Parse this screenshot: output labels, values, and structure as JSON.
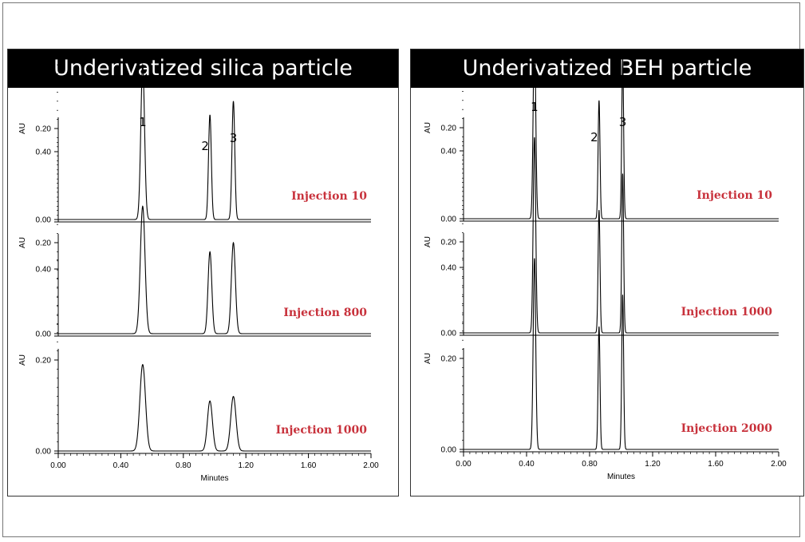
{
  "chart_data": [
    {
      "type": "line",
      "title": "Underivatized silica particle",
      "xlabel": "Minutes",
      "ylabel": "AU",
      "xlim": [
        0.0,
        2.0
      ],
      "ylim": [
        0.0,
        0.45
      ],
      "x_ticks": [
        "0.00",
        "0.40",
        "0.80",
        "1.20",
        "1.60",
        "2.00"
      ],
      "y_ticks": [
        "0.00",
        "0.20",
        "0.40"
      ],
      "peak_labels": [
        "1",
        "2",
        "3"
      ],
      "traces": [
        {
          "name": "Injection 10",
          "peaks": [
            {
              "x": 0.54,
              "height": 0.34,
              "width": 0.012
            },
            {
              "x": 0.97,
              "height": 0.23,
              "width": 0.009
            },
            {
              "x": 1.12,
              "height": 0.26,
              "width": 0.009
            }
          ]
        },
        {
          "name": "Injection 800",
          "peaks": [
            {
              "x": 0.54,
              "height": 0.28,
              "width": 0.015
            },
            {
              "x": 0.97,
              "height": 0.18,
              "width": 0.012
            },
            {
              "x": 1.12,
              "height": 0.2,
              "width": 0.013
            }
          ]
        },
        {
          "name": "Injection 1000",
          "peaks": [
            {
              "x": 0.54,
              "height": 0.19,
              "width": 0.018
            },
            {
              "x": 0.97,
              "height": 0.11,
              "width": 0.016
            },
            {
              "x": 1.12,
              "height": 0.12,
              "width": 0.017
            }
          ]
        }
      ]
    },
    {
      "type": "line",
      "title": "Underivatized BEH particle",
      "xlabel": "Minutes",
      "ylabel": "AU",
      "xlim": [
        0.0,
        2.0
      ],
      "ylim": [
        0.0,
        0.45
      ],
      "x_ticks": [
        "0.00",
        "0.40",
        "0.80",
        "1.20",
        "1.60",
        "2.00"
      ],
      "y_ticks": [
        "0.00",
        "0.20",
        "0.40"
      ],
      "peak_labels": [
        "1",
        "2",
        "3"
      ],
      "traces": [
        {
          "name": "Injection 10",
          "peaks": [
            {
              "x": 0.45,
              "height": 0.42,
              "width": 0.008
            },
            {
              "x": 0.86,
              "height": 0.26,
              "width": 0.006
            },
            {
              "x": 1.01,
              "height": 0.35,
              "width": 0.006
            }
          ]
        },
        {
          "name": "Injection 1000",
          "peaks": [
            {
              "x": 0.45,
              "height": 0.43,
              "width": 0.008
            },
            {
              "x": 0.86,
              "height": 0.27,
              "width": 0.006
            },
            {
              "x": 1.01,
              "height": 0.35,
              "width": 0.006
            }
          ]
        },
        {
          "name": "Injection 2000",
          "peaks": [
            {
              "x": 0.45,
              "height": 0.42,
              "width": 0.008
            },
            {
              "x": 0.86,
              "height": 0.27,
              "width": 0.006
            },
            {
              "x": 1.01,
              "height": 0.34,
              "width": 0.006
            }
          ]
        }
      ]
    }
  ]
}
